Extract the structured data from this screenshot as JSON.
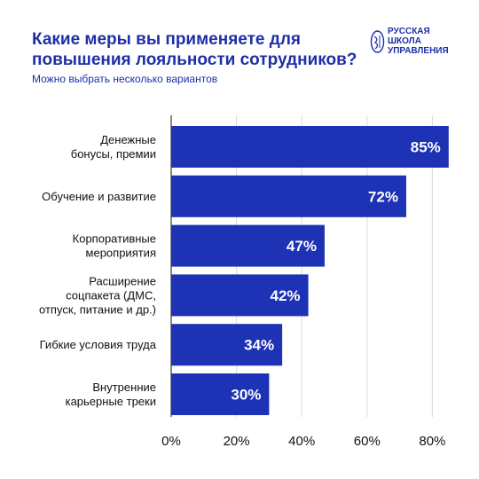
{
  "header": {
    "title": "Какие меры вы применяете для повышения лояльности сотрудников?",
    "subtitle": "Можно выбрать несколько вариантов"
  },
  "logo": {
    "text": "РУССКАЯ\nШКОЛА\nУПРАВЛЕНИЯ",
    "icon": "rsu-logo-icon"
  },
  "colors": {
    "bar": "#1d32b4",
    "title": "#1d2fa8",
    "grid": "#d9d9d9"
  },
  "chart_data": {
    "type": "bar",
    "orientation": "horizontal",
    "categories": [
      [
        "Денежные",
        "бонусы, премии"
      ],
      [
        "Обучение и развитие"
      ],
      [
        "Корпоративные",
        "мероприятия"
      ],
      [
        "Расширение",
        "соцпакета (ДМС,",
        "отпуск, питание и др.)"
      ],
      [
        "Гибкие условия труда"
      ],
      [
        "Внутренние",
        "карьерные треки"
      ]
    ],
    "values": [
      85,
      72,
      47,
      42,
      34,
      30
    ],
    "value_labels": [
      "85%",
      "72%",
      "47%",
      "42%",
      "34%",
      "30%"
    ],
    "xlim": [
      0,
      85
    ],
    "xticks": [
      0,
      20,
      40,
      60,
      80
    ],
    "xtick_labels": [
      "0%",
      "20%",
      "40%",
      "60%",
      "80%"
    ],
    "grid": "vertical",
    "legend": "none"
  }
}
